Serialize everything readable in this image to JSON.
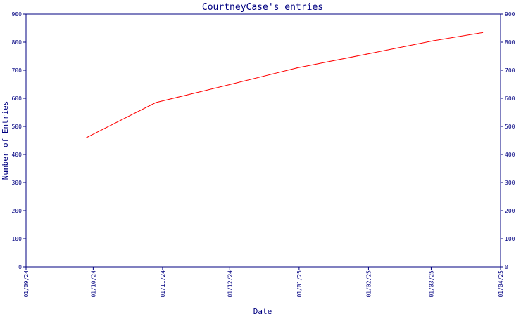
{
  "chart_data": {
    "type": "line",
    "title": "CourtneyCase's entries",
    "xlabel": "Date",
    "ylabel": "Number of Entries",
    "ylim": [
      0,
      900
    ],
    "yticks": [
      "0",
      "100",
      "200",
      "300",
      "400",
      "500",
      "600",
      "700",
      "800",
      "900"
    ],
    "xlim": [
      "2024-09-01",
      "2025-04-01"
    ],
    "xticks": [
      "01/09/24",
      "01/10/24",
      "01/11/24",
      "01/12/24",
      "01/01/25",
      "01/02/25",
      "01/03/25",
      "01/04/25"
    ],
    "series": [
      {
        "color": "#ff0000",
        "x": [
          "2024-09-28",
          "2024-10-29",
          "2024-11-29",
          "2024-12-31",
          "2025-01-31",
          "2025-03-02",
          "2025-03-24"
        ],
        "y": [
          460,
          585,
          645,
          708,
          757,
          805,
          834
        ]
      }
    ],
    "grid": false,
    "legend": "none",
    "axis_color": "#000080",
    "right_axis_mirrors_left": true
  }
}
